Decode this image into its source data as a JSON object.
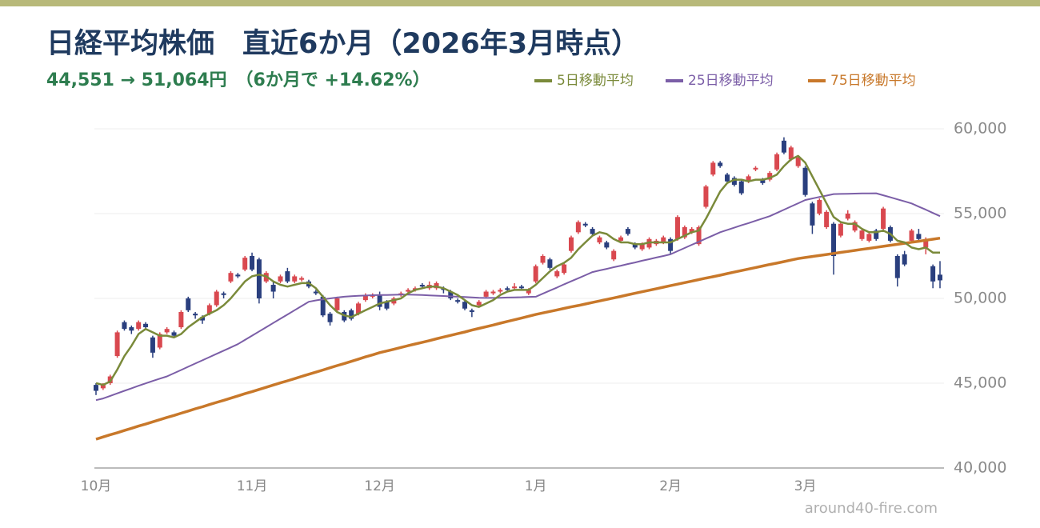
{
  "chart_data": {
    "type": "candlestick",
    "title": "日経平均株価　直近6か月（2026年3月時点）",
    "subtitle": "44,551 → 51,064円　（6か月で +14.62%）",
    "source": "around40-fire.com",
    "categories": [
      "10月",
      null,
      null,
      null,
      null,
      null,
      null,
      null,
      null,
      null,
      null,
      null,
      null,
      null,
      null,
      null,
      null,
      null,
      null,
      null,
      null,
      null,
      "11月",
      null,
      null,
      null,
      null,
      null,
      null,
      null,
      null,
      null,
      null,
      null,
      null,
      null,
      null,
      null,
      null,
      null,
      "12月",
      null,
      null,
      null,
      null,
      null,
      null,
      null,
      null,
      null,
      null,
      null,
      null,
      null,
      null,
      null,
      null,
      null,
      null,
      null,
      null,
      null,
      "1月",
      null,
      null,
      null,
      null,
      null,
      null,
      null,
      null,
      null,
      null,
      null,
      null,
      null,
      null,
      null,
      null,
      null,
      null,
      "2月",
      null,
      null,
      null,
      null,
      null,
      null,
      null,
      null,
      null,
      null,
      null,
      null,
      null,
      null,
      null,
      null,
      null,
      null,
      "3月",
      null,
      null,
      null,
      null,
      null,
      null,
      null,
      null,
      null,
      null,
      null,
      null,
      null,
      null,
      null,
      null,
      null,
      null,
      null
    ],
    "candles": {
      "up_color": "#d9484f",
      "down_color": "#2a3f7e",
      "open": [
        44900,
        44700,
        45000,
        46600,
        48600,
        48300,
        48200,
        48500,
        47700,
        47100,
        48000,
        48000,
        48300,
        50000,
        49100,
        48900,
        49100,
        49600,
        50300,
        51000,
        51400,
        51700,
        52500,
        52300,
        51000,
        50800,
        51000,
        51600,
        51000,
        51100,
        51000,
        50400,
        50100,
        49100,
        49300,
        49200,
        49300,
        49100,
        49900,
        50100,
        50200,
        49800,
        49700,
        50200,
        50400,
        50500,
        50800,
        50600,
        50600,
        50600,
        50400,
        49900,
        49800,
        49300,
        49600,
        50100,
        50300,
        50400,
        50600,
        50600,
        50700,
        50300,
        51000,
        52100,
        52300,
        51300,
        51500,
        52800,
        53900,
        54400,
        54100,
        53300,
        53300,
        52300,
        53400,
        54100,
        53200,
        52900,
        53000,
        53200,
        53300,
        53500,
        53500,
        53600,
        53900,
        53200,
        55400,
        57300,
        58000,
        57300,
        57100,
        56900,
        56900,
        57600,
        57000,
        57000,
        57600,
        59300,
        58200,
        57800,
        57700,
        55600,
        55000,
        54200,
        54400,
        53700,
        54700,
        54000,
        53500,
        53400,
        54000,
        54100,
        54200,
        52500,
        52600,
        53400,
        53800,
        53000,
        51900,
        51400
      ],
      "high": [
        45000,
        45000,
        45500,
        48100,
        48700,
        48400,
        48700,
        48600,
        47800,
        48000,
        48300,
        48100,
        49300,
        50100,
        49200,
        49000,
        49700,
        50500,
        50400,
        51600,
        51500,
        52500,
        52700,
        52400,
        51600,
        51000,
        51400,
        51800,
        51400,
        51300,
        51100,
        50500,
        50200,
        49200,
        50100,
        49300,
        49400,
        49800,
        50300,
        50300,
        50400,
        49900,
        50100,
        50400,
        50600,
        50700,
        50900,
        51000,
        51000,
        50700,
        50500,
        50000,
        49900,
        49400,
        49900,
        50500,
        50500,
        50600,
        50700,
        50900,
        50800,
        50600,
        52000,
        52600,
        52400,
        51700,
        52100,
        53700,
        54600,
        54500,
        54200,
        53700,
        53400,
        52900,
        53700,
        54200,
        53300,
        53300,
        53600,
        53500,
        53700,
        53600,
        54900,
        54300,
        54200,
        54300,
        56700,
        58100,
        58100,
        57400,
        57200,
        57000,
        57300,
        57800,
        57100,
        57500,
        58600,
        59500,
        59000,
        58400,
        57800,
        55700,
        55900,
        55200,
        54500,
        54500,
        55200,
        54600,
        54100,
        53900,
        54100,
        55400,
        54300,
        52600,
        52800,
        54100,
        54100,
        53600,
        52000,
        52200
      ],
      "low": [
        44300,
        44600,
        44900,
        46500,
        48100,
        47900,
        48100,
        48200,
        46500,
        47000,
        47900,
        47700,
        48200,
        49200,
        48800,
        48500,
        49000,
        49500,
        50000,
        50900,
        51200,
        51600,
        51600,
        49700,
        50900,
        50000,
        50900,
        50900,
        50900,
        51000,
        50600,
        50200,
        48900,
        48400,
        49200,
        48600,
        48700,
        49000,
        49800,
        50000,
        49300,
        49300,
        49600,
        50100,
        50300,
        50400,
        50600,
        50500,
        50500,
        50300,
        49900,
        49700,
        49300,
        48900,
        49500,
        50000,
        50200,
        50300,
        50400,
        50500,
        50500,
        50200,
        50900,
        52000,
        51700,
        51200,
        51400,
        52700,
        53800,
        54200,
        53700,
        53200,
        52900,
        52200,
        53300,
        53700,
        52900,
        52800,
        52900,
        53100,
        53200,
        52600,
        53400,
        53500,
        53800,
        53100,
        55300,
        57200,
        57700,
        56800,
        56600,
        56100,
        56800,
        57500,
        56700,
        56900,
        57500,
        58500,
        58100,
        57700,
        56000,
        53800,
        54900,
        54100,
        51400,
        53600,
        54600,
        53900,
        53400,
        53300,
        53400,
        54000,
        53300,
        50700,
        51900,
        53300,
        53400,
        52600,
        50600,
        50600
      ],
      "close": [
        44551,
        44900,
        45400,
        48000,
        48200,
        48100,
        48600,
        48300,
        46800,
        47900,
        48200,
        47800,
        49200,
        49300,
        49000,
        48700,
        49600,
        50400,
        50200,
        51500,
        51300,
        52400,
        51700,
        50000,
        51500,
        50400,
        51300,
        51000,
        51300,
        51200,
        50700,
        50300,
        49000,
        48600,
        50000,
        48700,
        48800,
        49700,
        50200,
        50200,
        49500,
        49400,
        50000,
        50300,
        50500,
        50600,
        50700,
        50800,
        50900,
        50500,
        50000,
        49800,
        49400,
        49200,
        49800,
        50400,
        50400,
        50500,
        50500,
        50700,
        50600,
        50500,
        51900,
        52500,
        51800,
        51600,
        52000,
        53600,
        54500,
        54300,
        53800,
        53600,
        53000,
        52800,
        53600,
        53800,
        53000,
        53200,
        53500,
        53400,
        53600,
        52800,
        54800,
        54200,
        54100,
        54200,
        56600,
        58000,
        57800,
        56900,
        56700,
        56200,
        57200,
        57700,
        56800,
        57400,
        58500,
        58600,
        58900,
        58300,
        56100,
        54300,
        55800,
        55100,
        52500,
        54400,
        55000,
        54500,
        54000,
        53800,
        53500,
        55300,
        53400,
        51200,
        52000,
        54000,
        53500,
        53500,
        51000,
        51064
      ]
    },
    "series": [
      {
        "name": "75日移動平均",
        "color": "#c8782a",
        "width": 3.5,
        "values": [
          41700,
          41830,
          41960,
          42080,
          42210,
          42340,
          42470,
          42590,
          42720,
          42850,
          42980,
          43100,
          43230,
          43360,
          43490,
          43610,
          43740,
          43870,
          43990,
          44120,
          44250,
          44380,
          44500,
          44630,
          44760,
          44890,
          45020,
          45140,
          45270,
          45400,
          45530,
          45650,
          45780,
          45910,
          46040,
          46160,
          46290,
          46420,
          46550,
          46670,
          46800,
          46900,
          47000,
          47110,
          47210,
          47310,
          47410,
          47510,
          47620,
          47720,
          47820,
          47920,
          48020,
          48130,
          48230,
          48330,
          48430,
          48540,
          48640,
          48740,
          48840,
          48950,
          49050,
          49140,
          49230,
          49320,
          49410,
          49500,
          49580,
          49670,
          49760,
          49850,
          49940,
          50030,
          50120,
          50210,
          50300,
          50390,
          50480,
          50570,
          50660,
          50750,
          50840,
          50930,
          51020,
          51110,
          51200,
          51280,
          51370,
          51460,
          51550,
          51640,
          51730,
          51820,
          51910,
          52000,
          52080,
          52170,
          52260,
          52350,
          52410,
          52470,
          52530,
          52590,
          52650,
          52710,
          52770,
          52830,
          52890,
          52950,
          53010,
          53070,
          53130,
          53190,
          53250,
          53310,
          53370,
          53430,
          53490,
          53550
        ]
      },
      {
        "name": "25日移動平均",
        "color": "#7b5ea7",
        "width": 2,
        "values": [
          44000,
          44100,
          44250,
          44400,
          44550,
          44700,
          44850,
          44990,
          45130,
          45270,
          45400,
          45590,
          45780,
          45970,
          46160,
          46350,
          46540,
          46730,
          46920,
          47110,
          47300,
          47550,
          47800,
          48050,
          48300,
          48550,
          48800,
          49050,
          49300,
          49550,
          49800,
          49880,
          49950,
          50000,
          50050,
          50100,
          50130,
          50150,
          50170,
          50190,
          50200,
          50200,
          50210,
          50220,
          50220,
          50210,
          50200,
          50180,
          50160,
          50140,
          50120,
          50100,
          50080,
          50060,
          50040,
          50030,
          50030,
          50040,
          50050,
          50060,
          50070,
          50090,
          50100,
          50280,
          50460,
          50640,
          50830,
          51010,
          51190,
          51370,
          51550,
          51650,
          51740,
          51840,
          51930,
          52030,
          52120,
          52220,
          52310,
          52410,
          52500,
          52600,
          52790,
          52970,
          53160,
          53340,
          53530,
          53710,
          53900,
          54040,
          54170,
          54310,
          54440,
          54580,
          54710,
          54850,
          55040,
          55230,
          55420,
          55610,
          55800,
          55890,
          55980,
          56060,
          56150,
          56160,
          56170,
          56180,
          56190,
          56190,
          56200,
          56080,
          55960,
          55840,
          55720,
          55600,
          55410,
          55230,
          55040,
          54850
        ]
      },
      {
        "name": "5日移動平均",
        "color": "#7a8a3a",
        "width": 2.5,
        "values": [
          45000,
          44900,
          45100,
          45800,
          46600,
          47200,
          47900,
          48200,
          48000,
          47800,
          47800,
          47700,
          47900,
          48300,
          48600,
          48900,
          49100,
          49300,
          49600,
          50000,
          50500,
          51000,
          51300,
          51400,
          51300,
          51000,
          50800,
          50700,
          50800,
          50900,
          50900,
          50600,
          50100,
          49600,
          49200,
          49000,
          48900,
          49100,
          49300,
          49500,
          49700,
          49800,
          49900,
          50000,
          50300,
          50500,
          50600,
          50700,
          50700,
          50600,
          50400,
          50200,
          49900,
          49600,
          49500,
          49700,
          49900,
          50200,
          50400,
          50500,
          50500,
          50500,
          50800,
          51200,
          51600,
          51900,
          52100,
          52400,
          52900,
          53300,
          53700,
          53900,
          53800,
          53500,
          53300,
          53300,
          53200,
          53200,
          53300,
          53300,
          53300,
          53300,
          53500,
          53700,
          53900,
          54000,
          54700,
          55500,
          56300,
          56800,
          57000,
          57000,
          56900,
          57000,
          57000,
          57100,
          57300,
          57800,
          58200,
          58400,
          58000,
          57200,
          56400,
          55600,
          54800,
          54500,
          54400,
          54400,
          54100,
          53900,
          53900,
          54000,
          53800,
          53400,
          53300,
          53000,
          52900,
          53000,
          52700,
          52700
        ]
      }
    ],
    "legend_order": [
      2,
      1,
      0
    ],
    "ylim": [
      40000,
      60000
    ],
    "yticks": [
      {
        "value": 40000,
        "label": "40,000"
      },
      {
        "value": 45000,
        "label": "45,000"
      },
      {
        "value": 50000,
        "label": "50,000"
      },
      {
        "value": 55000,
        "label": "55,000"
      },
      {
        "value": 60000,
        "label": "60,000"
      }
    ],
    "grid": true
  }
}
